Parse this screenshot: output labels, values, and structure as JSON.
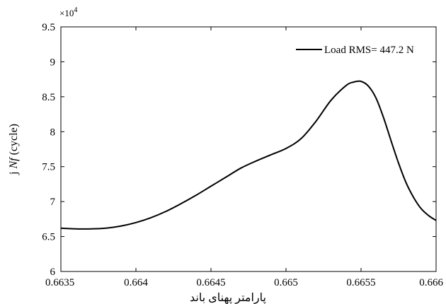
{
  "chart_data": {
    "type": "line",
    "title": "",
    "xlabel": "پارامتر پهنای باند",
    "ylabel": "Nf (cycle)",
    "ylabel_prefix": "j",
    "y_multiplier_label": "×10",
    "y_multiplier_exp": "4",
    "xlim": [
      0.6635,
      0.666
    ],
    "ylim": [
      6,
      9.5
    ],
    "xticks": [
      0.6635,
      0.664,
      0.6645,
      0.665,
      0.6655,
      0.666
    ],
    "xtick_labels": [
      "0.6635",
      "0.664",
      "0.6645",
      "0.665",
      "0.6655",
      "0.666"
    ],
    "yticks": [
      6,
      6.5,
      7,
      7.5,
      8,
      8.5,
      9,
      9.5
    ],
    "ytick_labels": [
      "6",
      "6.5",
      "7",
      "7.5",
      "8",
      "8.5",
      "9",
      "9.5"
    ],
    "grid": false,
    "legend_position": "top-right",
    "series": [
      {
        "name": "Load RMS= 447.2 N",
        "color": "#000000",
        "x": [
          0.6635,
          0.6636,
          0.6637,
          0.6638,
          0.6639,
          0.664,
          0.6641,
          0.6642,
          0.6643,
          0.6644,
          0.6645,
          0.6646,
          0.6647,
          0.6648,
          0.6649,
          0.665,
          0.6651,
          0.6652,
          0.6653,
          0.6654,
          0.66545,
          0.6655,
          0.66555,
          0.6656,
          0.66565,
          0.6657,
          0.66575,
          0.6658,
          0.66585,
          0.6659,
          0.66595,
          0.666
        ],
        "y": [
          6.62,
          6.61,
          6.61,
          6.62,
          6.65,
          6.7,
          6.77,
          6.86,
          6.97,
          7.09,
          7.22,
          7.35,
          7.48,
          7.58,
          7.67,
          7.76,
          7.9,
          8.15,
          8.45,
          8.66,
          8.71,
          8.72,
          8.65,
          8.48,
          8.2,
          7.87,
          7.55,
          7.27,
          7.06,
          6.9,
          6.8,
          6.73
        ]
      }
    ]
  }
}
